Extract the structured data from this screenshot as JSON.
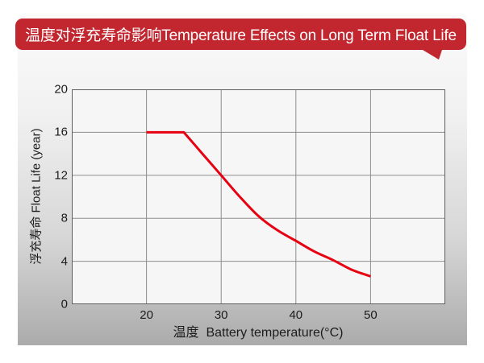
{
  "banner": {
    "text": "温度对浮充寿命影响Temperature Effects on Long Term Float Life",
    "bg_color": "#c2262f",
    "text_color": "#ffffff"
  },
  "chart_data": {
    "type": "line",
    "title": "温度对浮充寿命影响 Temperature Effects on Long Term Float Life",
    "xlabel": "温度  Battery temperature(°C)",
    "ylabel": "浮充寿命 Float Life (year)",
    "xlim": [
      10,
      60
    ],
    "ylim": [
      0,
      20
    ],
    "xticks": [
      20,
      30,
      40,
      50
    ],
    "yticks": [
      0,
      4,
      8,
      12,
      16,
      20
    ],
    "grid": true,
    "legend": "none",
    "plot_bg": "#f6f6f6",
    "grid_color": "#8d8d8d",
    "border_color": "#5e5e5e",
    "series": [
      {
        "name": "float-life-vs-temperature",
        "color": "#e60012",
        "x": [
          20,
          25,
          27.5,
          30,
          32.5,
          35,
          37.5,
          40,
          42.5,
          45,
          47.5,
          50
        ],
        "y": [
          16,
          16,
          14,
          12,
          10,
          8.2,
          6.9,
          5.9,
          4.9,
          4.1,
          3.2,
          2.6
        ]
      }
    ]
  }
}
